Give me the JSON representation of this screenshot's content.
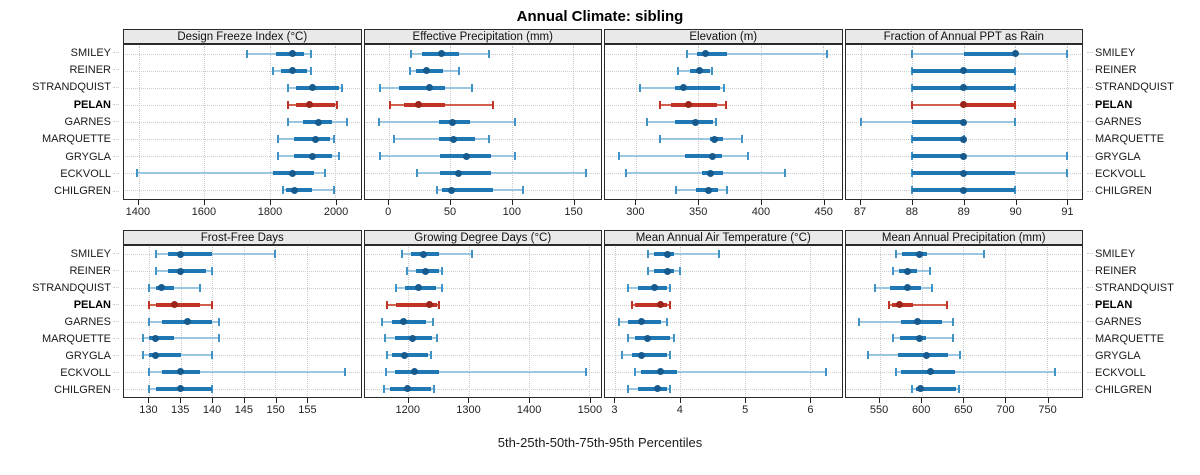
{
  "title": "Annual Climate: sibling",
  "caption": "5th-25th-50th-75th-95th Percentiles",
  "stations": [
    "SMILEY",
    "REINER",
    "STRANDQUIST",
    "PELAN",
    "GARNES",
    "MARQUETTE",
    "GRYGLA",
    "ECKVOLL",
    "CHILGREN"
  ],
  "highlight_station": "PELAN",
  "colors": {
    "blue_whisker": "#9cc7e2",
    "blue_cap": "#4093c7",
    "blue_box": "#1f77b4",
    "blue_dot": "#175a8e",
    "red_whisker": "#d2604f",
    "red_cap": "#c13325",
    "red_box": "#c13325",
    "red_dot": "#9a241a",
    "grid": "#cccccc",
    "strip_bg": "#e9e9e9",
    "border": "#2a2a2a"
  },
  "chart_data": {
    "type": "dotplot-percentiles",
    "percentile_labels": [
      "5th",
      "25th",
      "50th",
      "75th",
      "95th"
    ],
    "legend_note": "each row: 5th-95th whisker, 25th-75th thick bar, dot at median",
    "panels": [
      {
        "title": "Design Freeze Index (°C)",
        "xlim": [
          1355,
          2077
        ],
        "ticks": [
          1400,
          1600,
          1800,
          2000
        ],
        "values": {
          "SMILEY": [
            1730,
            1820,
            1870,
            1905,
            1925
          ],
          "REINER": [
            1810,
            1835,
            1870,
            1915,
            1925
          ],
          "STRANDQUIST": [
            1855,
            1880,
            1930,
            2010,
            2020
          ],
          "PELAN": [
            1855,
            1880,
            1920,
            2000,
            2005
          ],
          "GARNES": [
            1855,
            1900,
            1950,
            1990,
            2035
          ],
          "MARQUETTE": [
            1825,
            1875,
            1940,
            1985,
            1995
          ],
          "GRYGLA": [
            1825,
            1875,
            1930,
            1990,
            2010
          ],
          "ECKVOLL": [
            1395,
            1810,
            1870,
            1935,
            1970
          ],
          "CHILGREN": [
            1840,
            1850,
            1875,
            1930,
            1995
          ]
        }
      },
      {
        "title": "Effective Precipitation (mm)",
        "xlim": [
          -20,
          173
        ],
        "ticks": [
          0,
          50,
          100,
          150
        ],
        "values": {
          "SMILEY": [
            18,
            27,
            43,
            57,
            82
          ],
          "REINER": [
            17,
            22,
            31,
            44,
            57
          ],
          "STRANDQUIST": [
            -7,
            8,
            33,
            46,
            68
          ],
          "PELAN": [
            1,
            12,
            24,
            46,
            85
          ],
          "GARNES": [
            -8,
            41,
            52,
            66,
            103
          ],
          "MARQUETTE": [
            4,
            41,
            53,
            70,
            82
          ],
          "GRYGLA": [
            -7,
            42,
            63,
            83,
            103
          ],
          "ECKVOLL": [
            23,
            42,
            57,
            83,
            161
          ],
          "CHILGREN": [
            39,
            43,
            51,
            85,
            109
          ]
        }
      },
      {
        "title": "Elevation (m)",
        "xlim": [
          275,
          465
        ],
        "ticks": [
          300,
          350,
          400,
          450
        ],
        "values": {
          "SMILEY": [
            341,
            349,
            356,
            373,
            453
          ],
          "REINER": [
            334,
            343,
            351,
            359,
            361
          ],
          "STRANDQUIST": [
            303,
            331,
            338,
            367,
            371
          ],
          "PELAN": [
            319,
            328,
            342,
            365,
            372
          ],
          "GARNES": [
            309,
            331,
            348,
            362,
            364
          ],
          "MARQUETTE": [
            319,
            359,
            363,
            370,
            385
          ],
          "GRYGLA": [
            286,
            339,
            361,
            369,
            390
          ],
          "ECKVOLL": [
            292,
            353,
            360,
            370,
            420
          ],
          "CHILGREN": [
            332,
            348,
            358,
            366,
            373
          ]
        }
      },
      {
        "title": "Fraction of Annual PPT as Rain",
        "xlim": [
          86.7,
          91.3
        ],
        "ticks": [
          87,
          88,
          89,
          90,
          91
        ],
        "values": {
          "SMILEY": [
            88,
            89,
            90,
            90,
            91
          ],
          "REINER": [
            88,
            88,
            89,
            90,
            90
          ],
          "STRANDQUIST": [
            88,
            88,
            89,
            90,
            90
          ],
          "PELAN": [
            88,
            89,
            89,
            90,
            90
          ],
          "GARNES": [
            87,
            88,
            89,
            89,
            90
          ],
          "MARQUETTE": [
            88,
            88,
            89,
            89,
            89
          ],
          "GRYGLA": [
            88,
            88,
            89,
            89,
            91
          ],
          "ECKVOLL": [
            88,
            88,
            89,
            90,
            91
          ],
          "CHILGREN": [
            88,
            88,
            89,
            90,
            90
          ]
        }
      },
      {
        "title": "Frost-Free Days",
        "xlim": [
          126,
          163.5
        ],
        "ticks": [
          130,
          135,
          140,
          145,
          150,
          155
        ],
        "values": {
          "SMILEY": [
            131,
            133,
            135,
            140,
            150
          ],
          "REINER": [
            131,
            133,
            135,
            139,
            140
          ],
          "STRANDQUIST": [
            130,
            131,
            132,
            134,
            138
          ],
          "PELAN": [
            130,
            131,
            134,
            138,
            140
          ],
          "GARNES": [
            130,
            132,
            136,
            140,
            141
          ],
          "MARQUETTE": [
            129,
            130,
            131,
            134,
            141
          ],
          "GRYGLA": [
            129,
            130,
            131,
            135,
            140
          ],
          "ECKVOLL": [
            130,
            132,
            135,
            138,
            161
          ],
          "CHILGREN": [
            130,
            131,
            135,
            140,
            140
          ]
        }
      },
      {
        "title": "Growing Degree Days (°C)",
        "xlim": [
          1127,
          1520
        ],
        "ticks": [
          1200,
          1300,
          1400,
          1500
        ],
        "values": {
          "SMILEY": [
            1190,
            1205,
            1225,
            1250,
            1305
          ],
          "REINER": [
            1197,
            1213,
            1228,
            1250,
            1255
          ],
          "STRANDQUIST": [
            1179,
            1195,
            1217,
            1246,
            1255
          ],
          "PELAN": [
            1165,
            1180,
            1235,
            1248,
            1250
          ],
          "GARNES": [
            1156,
            1173,
            1191,
            1230,
            1240
          ],
          "MARQUETTE": [
            1161,
            1177,
            1206,
            1240,
            1248
          ],
          "GRYGLA": [
            1164,
            1172,
            1193,
            1232,
            1237
          ],
          "ECKVOLL": [
            1163,
            1178,
            1210,
            1250,
            1495
          ],
          "CHILGREN": [
            1159,
            1170,
            1199,
            1238,
            1242
          ]
        }
      },
      {
        "title": "Mean Annual Air Temperature (°C)",
        "xlim": [
          2.84,
          6.49
        ],
        "ticks": [
          3,
          4,
          5,
          6
        ],
        "values": {
          "SMILEY": [
            3.5,
            3.6,
            3.8,
            3.9,
            4.6
          ],
          "REINER": [
            3.5,
            3.6,
            3.8,
            3.9,
            4.0
          ],
          "STRANDQUIST": [
            3.2,
            3.35,
            3.6,
            3.8,
            3.85
          ],
          "PELAN": [
            3.25,
            3.3,
            3.7,
            3.8,
            3.85
          ],
          "GARNES": [
            3.05,
            3.2,
            3.4,
            3.7,
            3.8
          ],
          "MARQUETTE": [
            3.2,
            3.3,
            3.5,
            3.85,
            3.9
          ],
          "GRYGLA": [
            3.1,
            3.25,
            3.4,
            3.8,
            3.85
          ],
          "ECKVOLL": [
            3.3,
            3.4,
            3.7,
            3.95,
            6.25
          ],
          "CHILGREN": [
            3.2,
            3.35,
            3.65,
            3.8,
            3.85
          ]
        }
      },
      {
        "title": "Mean Annual Precipitation (mm)",
        "xlim": [
          509,
          792
        ],
        "ticks": [
          550,
          600,
          650,
          700,
          750
        ],
        "values": {
          "SMILEY": [
            570,
            577,
            598,
            607,
            675
          ],
          "REINER": [
            566,
            573,
            583,
            595,
            610
          ],
          "STRANDQUIST": [
            544,
            562,
            583,
            599,
            613
          ],
          "PELAN": [
            561,
            565,
            574,
            590,
            630
          ],
          "GARNES": [
            525,
            575,
            595,
            625,
            638
          ],
          "MARQUETTE": [
            566,
            574,
            598,
            605,
            638
          ],
          "GRYGLA": [
            536,
            572,
            606,
            632,
            646
          ],
          "ECKVOLL": [
            570,
            576,
            611,
            640,
            760
          ],
          "CHILGREN": [
            588,
            593,
            599,
            641,
            645
          ]
        }
      }
    ]
  }
}
